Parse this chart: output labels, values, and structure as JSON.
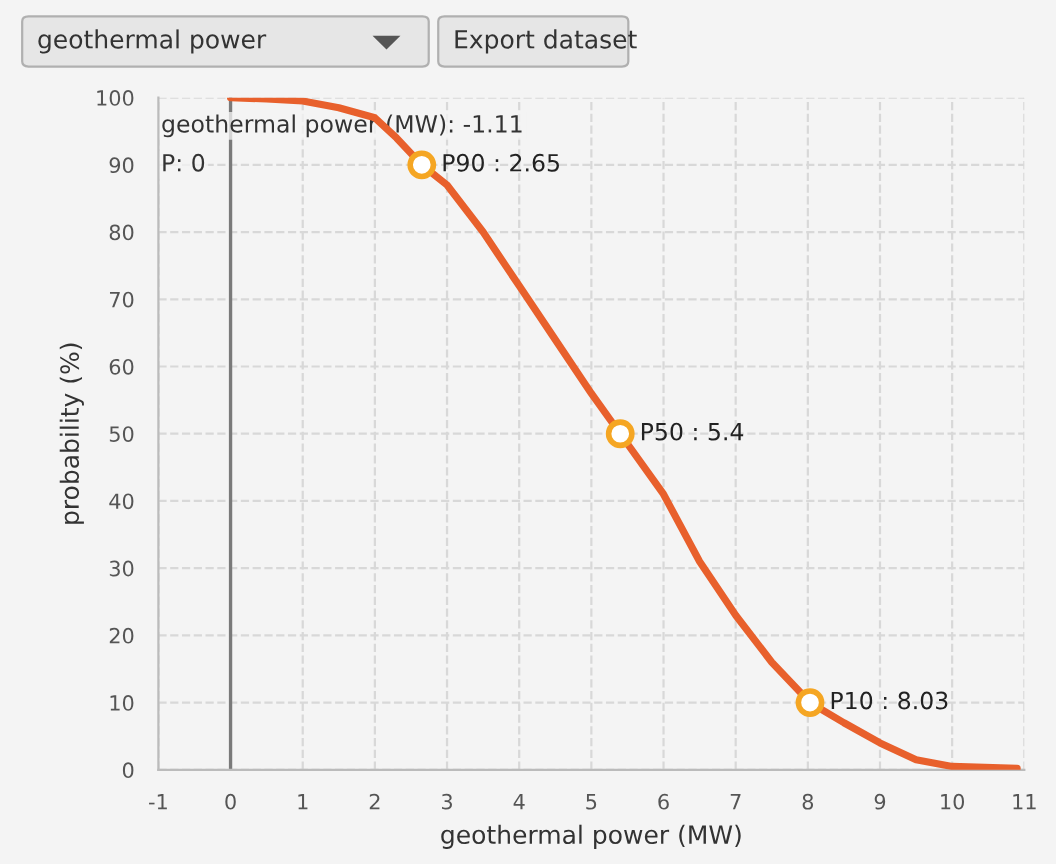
{
  "chart_data": {
    "type": "line",
    "xlabel": "geothermal power (MW)",
    "ylabel": "probability (%)",
    "x": [
      0,
      0.5,
      1,
      1.5,
      2,
      2.3,
      2.65,
      3,
      3.5,
      4,
      4.5,
      5,
      5.4,
      6,
      6.5,
      7,
      7.5,
      8.03,
      8.5,
      9,
      9.5,
      10,
      10.9
    ],
    "series": [
      {
        "color": "#e8602c",
        "values": [
          100,
          99.8,
          99.5,
          98.5,
          97,
          94,
          90,
          87,
          80,
          72,
          64,
          56,
          50,
          41,
          31,
          23,
          16,
          10,
          7,
          4,
          1.5,
          0.5,
          0.2
        ]
      },
      {
        "type": "scatter",
        "color": "#f5a623",
        "x": [
          2.65,
          5.4,
          8.03
        ],
        "values": [
          90,
          50,
          10
        ],
        "marker": "circle"
      }
    ],
    "xlim": [
      -1,
      11
    ],
    "xticks": [
      -1,
      0,
      1,
      2,
      3,
      4,
      5,
      6,
      7,
      8,
      9,
      10,
      11
    ],
    "ylim": [
      0,
      100
    ],
    "yticks": [
      0,
      10,
      20,
      30,
      40,
      50,
      60,
      70,
      80,
      90,
      100
    ],
    "grid": true,
    "legend": false,
    "ref_lines": [
      {
        "axis": "x",
        "value": 0,
        "color": "#7a7a7a"
      }
    ],
    "annotations": [
      "geothermal power",
      "Export dataset",
      "geothermal power (MW): -1.11",
      "P: 0",
      {
        "text": "P90 : 2.65",
        "x": 2.65,
        "y": 90
      },
      {
        "text": "P50 : 5.4",
        "x": 5.4,
        "y": 50
      },
      {
        "text": "P10 : 8.03",
        "x": 8.03,
        "y": 10
      }
    ]
  }
}
